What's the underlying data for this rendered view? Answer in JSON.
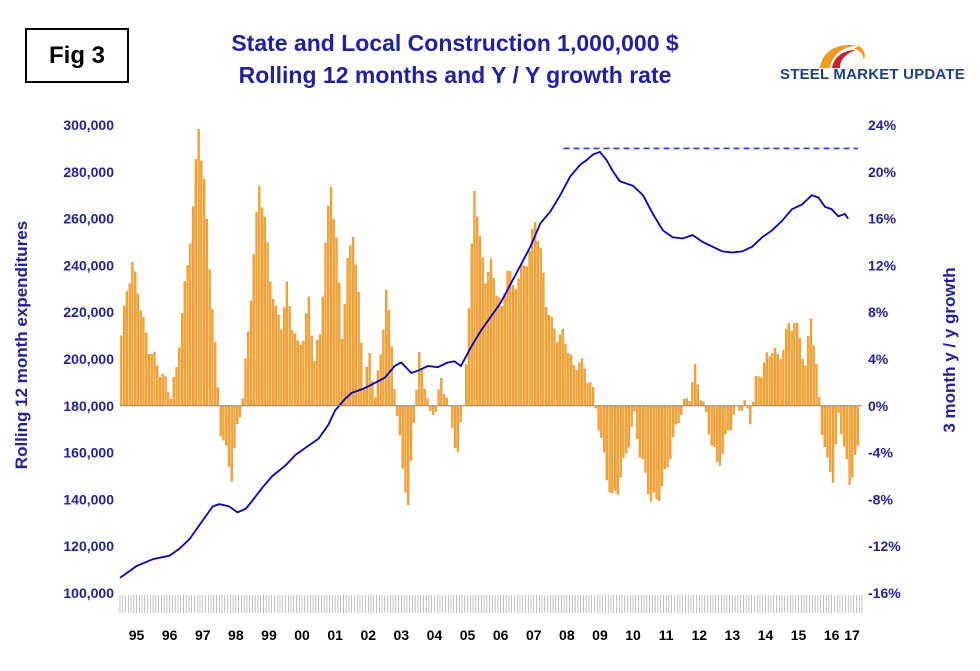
{
  "fig_label": "Fig 3",
  "logo": {
    "text": "STEEL MARKET UPDATE",
    "colors": {
      "swoosh_outer": "#f39a1e",
      "swoosh_inner": "#c8202f",
      "text": "#1b3f8f"
    }
  },
  "colors": {
    "bars": "#f7a531",
    "bar_edge": "#d97e10",
    "line": "#0000cc",
    "axis_text": "#1f1fa8",
    "dashed": "#1f3fe0"
  },
  "chart_data": {
    "type": "bar+line",
    "title": "State and Local Construction 1,000,000 $",
    "subtitle": "Rolling 12 months and Y / Y growth rate",
    "ylabel_left": "Rolling 12 month expenditures",
    "ylabel_right": "3 month y / y growth",
    "ylim_left": [
      100000,
      300000
    ],
    "ylim_right": [
      -16,
      24
    ],
    "left_ticks": [
      "100,000",
      "120,000",
      "140,000",
      "160,000",
      "180,000",
      "200,000",
      "220,000",
      "240,000",
      "260,000",
      "280,000",
      "300,000"
    ],
    "right_ticks": [
      "-16%",
      "-12%",
      "-8%",
      "-4%",
      "0%",
      "4%",
      "8%",
      "12%",
      "16%",
      "20%",
      "24%"
    ],
    "year_labels": [
      "95",
      "96",
      "97",
      "98",
      "99",
      "00",
      "01",
      "02",
      "03",
      "04",
      "05",
      "06",
      "07",
      "08",
      "09",
      "10",
      "11",
      "12",
      "13",
      "14",
      "15",
      "16",
      "17"
    ],
    "x_start": 1995.0,
    "x_end": 2017.417,
    "series": [
      {
        "name": "3 month y / y growth",
        "kind": "bar",
        "axis": "right",
        "anchors": [
          [
            1995.0,
            6
          ],
          [
            1995.17,
            10
          ],
          [
            1995.33,
            12
          ],
          [
            1995.5,
            10
          ],
          [
            1995.67,
            7
          ],
          [
            1995.83,
            5
          ],
          [
            1996.0,
            4
          ],
          [
            1996.17,
            3
          ],
          [
            1996.33,
            2
          ],
          [
            1996.5,
            1
          ],
          [
            1996.67,
            3
          ],
          [
            1996.83,
            8
          ],
          [
            1997.0,
            12
          ],
          [
            1997.17,
            17
          ],
          [
            1997.33,
            24
          ],
          [
            1997.5,
            19
          ],
          [
            1997.67,
            12
          ],
          [
            1997.83,
            5
          ],
          [
            1998.0,
            -2
          ],
          [
            1998.17,
            -4
          ],
          [
            1998.33,
            -6
          ],
          [
            1998.5,
            -2
          ],
          [
            1998.67,
            1
          ],
          [
            1998.83,
            6
          ],
          [
            1999.0,
            13
          ],
          [
            1999.17,
            19
          ],
          [
            1999.33,
            16
          ],
          [
            1999.5,
            11
          ],
          [
            1999.67,
            8
          ],
          [
            1999.83,
            7
          ],
          [
            2000.0,
            10
          ],
          [
            2000.17,
            7
          ],
          [
            2000.33,
            5
          ],
          [
            2000.5,
            6
          ],
          [
            2000.67,
            9
          ],
          [
            2000.83,
            4
          ],
          [
            2001.0,
            6
          ],
          [
            2001.17,
            14
          ],
          [
            2001.33,
            19
          ],
          [
            2001.5,
            14
          ],
          [
            2001.67,
            6
          ],
          [
            2001.83,
            12
          ],
          [
            2002.0,
            15
          ],
          [
            2002.17,
            9
          ],
          [
            2002.33,
            2
          ],
          [
            2002.5,
            4
          ],
          [
            2002.67,
            1
          ],
          [
            2002.83,
            4
          ],
          [
            2003.0,
            10
          ],
          [
            2003.17,
            5
          ],
          [
            2003.33,
            -1
          ],
          [
            2003.5,
            -5
          ],
          [
            2003.67,
            -9
          ],
          [
            2003.83,
            -1
          ],
          [
            2004.0,
            4
          ],
          [
            2004.17,
            2
          ],
          [
            2004.33,
            -1
          ],
          [
            2004.5,
            0
          ],
          [
            2004.67,
            2
          ],
          [
            2004.83,
            1
          ],
          [
            2005.0,
            -2
          ],
          [
            2005.17,
            -4
          ],
          [
            2005.33,
            0
          ],
          [
            2005.5,
            8
          ],
          [
            2005.67,
            19
          ],
          [
            2005.83,
            14
          ],
          [
            2006.0,
            11
          ],
          [
            2006.17,
            12
          ],
          [
            2006.33,
            10
          ],
          [
            2006.5,
            8
          ],
          [
            2006.67,
            12
          ],
          [
            2006.83,
            10
          ],
          [
            2007.0,
            11
          ],
          [
            2007.17,
            12
          ],
          [
            2007.33,
            13
          ],
          [
            2007.5,
            16
          ],
          [
            2007.67,
            13
          ],
          [
            2007.83,
            9
          ],
          [
            2008.0,
            7
          ],
          [
            2008.17,
            6
          ],
          [
            2008.33,
            6
          ],
          [
            2008.5,
            5
          ],
          [
            2008.67,
            3
          ],
          [
            2008.83,
            4
          ],
          [
            2009.0,
            3
          ],
          [
            2009.17,
            2
          ],
          [
            2009.33,
            0
          ],
          [
            2009.5,
            -3
          ],
          [
            2009.67,
            -6
          ],
          [
            2009.83,
            -8
          ],
          [
            2010.0,
            -7
          ],
          [
            2010.17,
            -5
          ],
          [
            2010.33,
            -3
          ],
          [
            2010.5,
            -1
          ],
          [
            2010.67,
            -4
          ],
          [
            2010.83,
            -6
          ],
          [
            2011.0,
            -8
          ],
          [
            2011.17,
            -8
          ],
          [
            2011.33,
            -7
          ],
          [
            2011.5,
            -5
          ],
          [
            2011.67,
            -3
          ],
          [
            2011.83,
            -1
          ],
          [
            2012.0,
            0
          ],
          [
            2012.17,
            1
          ],
          [
            2012.33,
            3
          ],
          [
            2012.5,
            1
          ],
          [
            2012.67,
            -1
          ],
          [
            2012.83,
            -3
          ],
          [
            2013.0,
            -5
          ],
          [
            2013.17,
            -4
          ],
          [
            2013.33,
            -2
          ],
          [
            2013.5,
            -1
          ],
          [
            2013.67,
            0
          ],
          [
            2013.83,
            0
          ],
          [
            2014.0,
            -1
          ],
          [
            2014.17,
            2
          ],
          [
            2014.33,
            3
          ],
          [
            2014.5,
            4
          ],
          [
            2014.67,
            5
          ],
          [
            2014.83,
            4
          ],
          [
            2015.0,
            5
          ],
          [
            2015.17,
            7
          ],
          [
            2015.33,
            7
          ],
          [
            2015.5,
            6
          ],
          [
            2015.67,
            3
          ],
          [
            2015.83,
            8
          ],
          [
            2016.0,
            3
          ],
          [
            2016.17,
            -2
          ],
          [
            2016.33,
            -5
          ],
          [
            2016.5,
            -6
          ],
          [
            2016.67,
            -1
          ],
          [
            2016.83,
            -3
          ],
          [
            2017.0,
            -7
          ],
          [
            2017.17,
            -4
          ]
        ]
      },
      {
        "name": "Rolling 12 month expenditures",
        "kind": "line",
        "axis": "left",
        "anchors": [
          [
            1995.0,
            106500
          ],
          [
            1995.5,
            111500
          ],
          [
            1996.0,
            114500
          ],
          [
            1996.5,
            116000
          ],
          [
            1996.8,
            119000
          ],
          [
            1997.1,
            123000
          ],
          [
            1997.5,
            131000
          ],
          [
            1997.8,
            137000
          ],
          [
            1998.0,
            138000
          ],
          [
            1998.3,
            137000
          ],
          [
            1998.55,
            134500
          ],
          [
            1998.8,
            136000
          ],
          [
            1999.0,
            139500
          ],
          [
            1999.3,
            145000
          ],
          [
            1999.6,
            150000
          ],
          [
            2000.0,
            154500
          ],
          [
            2000.3,
            159000
          ],
          [
            2000.6,
            162000
          ],
          [
            2001.0,
            166000
          ],
          [
            2001.3,
            172000
          ],
          [
            2001.5,
            178000
          ],
          [
            2001.8,
            183000
          ],
          [
            2002.0,
            185500
          ],
          [
            2002.3,
            187000
          ],
          [
            2002.6,
            189000
          ],
          [
            2003.0,
            192000
          ],
          [
            2003.3,
            197000
          ],
          [
            2003.5,
            198500
          ],
          [
            2003.8,
            194000
          ],
          [
            2004.0,
            195000
          ],
          [
            2004.3,
            197000
          ],
          [
            2004.6,
            196500
          ],
          [
            2004.9,
            198500
          ],
          [
            2005.1,
            199000
          ],
          [
            2005.3,
            197000
          ],
          [
            2005.6,
            205000
          ],
          [
            2005.9,
            212000
          ],
          [
            2006.2,
            218000
          ],
          [
            2006.5,
            224000
          ],
          [
            2006.8,
            232000
          ],
          [
            2007.1,
            240000
          ],
          [
            2007.4,
            248000
          ],
          [
            2007.7,
            258000
          ],
          [
            2008.0,
            263000
          ],
          [
            2008.3,
            270000
          ],
          [
            2008.6,
            278000
          ],
          [
            2008.9,
            283000
          ],
          [
            2009.1,
            285000
          ],
          [
            2009.3,
            287500
          ],
          [
            2009.5,
            288500
          ],
          [
            2009.7,
            285000
          ],
          [
            2009.9,
            280000
          ],
          [
            2010.1,
            276000
          ],
          [
            2010.5,
            274000
          ],
          [
            2010.8,
            270000
          ],
          [
            2011.1,
            262000
          ],
          [
            2011.4,
            255000
          ],
          [
            2011.7,
            252000
          ],
          [
            2012.0,
            251500
          ],
          [
            2012.3,
            253000
          ],
          [
            2012.6,
            250000
          ],
          [
            2012.9,
            248000
          ],
          [
            2013.2,
            246000
          ],
          [
            2013.5,
            245500
          ],
          [
            2013.8,
            246000
          ],
          [
            2014.1,
            248000
          ],
          [
            2014.4,
            252000
          ],
          [
            2014.7,
            255000
          ],
          [
            2015.0,
            259000
          ],
          [
            2015.3,
            264000
          ],
          [
            2015.6,
            266000
          ],
          [
            2015.9,
            270000
          ],
          [
            2016.1,
            269000
          ],
          [
            2016.3,
            265000
          ],
          [
            2016.5,
            264000
          ],
          [
            2016.7,
            261000
          ],
          [
            2016.9,
            262000
          ],
          [
            2017.0,
            260000
          ]
        ]
      }
    ],
    "reference_line": {
      "axis": "right",
      "value": 22,
      "x_from": 2008.4,
      "x_to": 2017.4,
      "style": "dashed"
    }
  }
}
